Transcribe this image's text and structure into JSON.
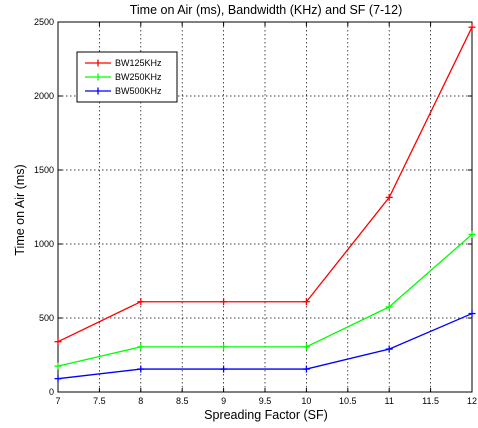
{
  "chart_data": {
    "type": "line",
    "title": "Time on Air (ms), Bandwidth (KHz) and SF (7-12)",
    "xlabel": "Spreading Factor (SF)",
    "ylabel": "Time on Air (ms)",
    "xlim": [
      7,
      12
    ],
    "ylim": [
      0,
      2500
    ],
    "x_ticks": [
      "7",
      "7.5",
      "8",
      "8.5",
      "9",
      "9.5",
      "10",
      "10.5",
      "11",
      "11.5",
      "12"
    ],
    "y_ticks": [
      "0",
      "500",
      "1000",
      "1500",
      "2000",
      "2500"
    ],
    "grid": true,
    "legend_position": "top-left",
    "x": [
      7,
      8,
      9,
      10,
      11,
      12
    ],
    "series": [
      {
        "name": "BW125KHz",
        "color": "#ff0000",
        "values": [
          340,
          610,
          610,
          610,
          1315,
          2465
        ]
      },
      {
        "name": "BW250KHz",
        "color": "#00ff00",
        "values": [
          175,
          305,
          305,
          305,
          575,
          1065
        ]
      },
      {
        "name": "BW500KHz",
        "color": "#0000ff",
        "values": [
          90,
          155,
          155,
          155,
          290,
          530
        ]
      }
    ]
  }
}
